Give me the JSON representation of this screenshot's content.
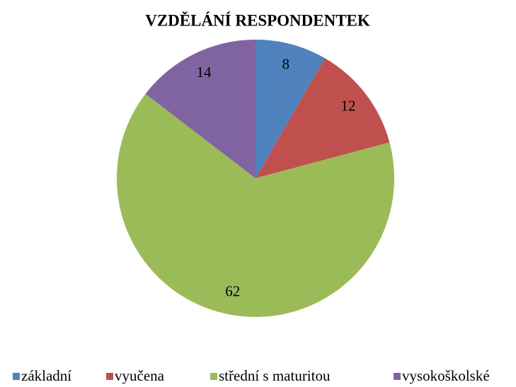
{
  "chart_data": {
    "type": "pie",
    "title": "VZDĚLÁNÍ RESPONDENTEK",
    "categories": [
      "základní",
      "vyučena",
      "střední s maturitou",
      "vysokoškolské"
    ],
    "values": [
      8,
      12,
      62,
      14
    ],
    "colors": [
      "#4f81bd",
      "#c0504d",
      "#9bbb59",
      "#8064a2"
    ],
    "legend": "bottom"
  }
}
